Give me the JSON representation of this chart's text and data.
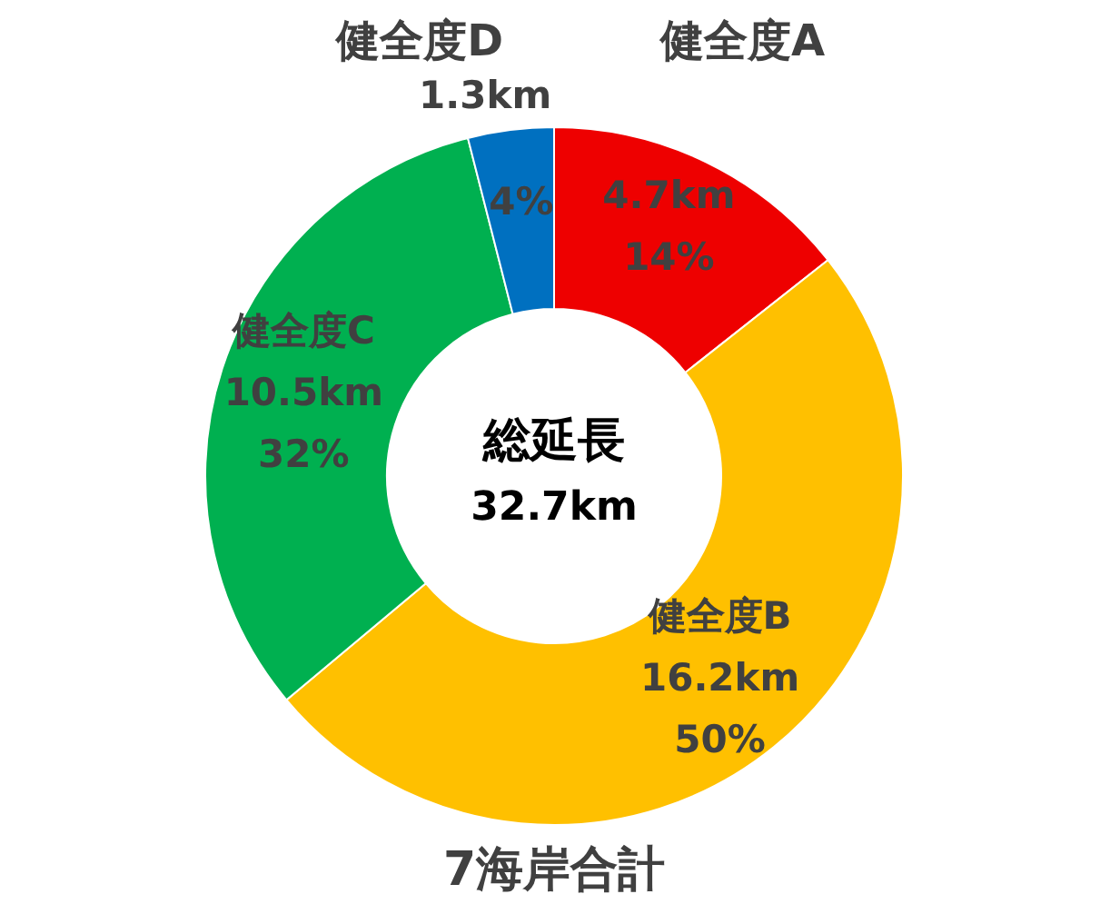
{
  "chart_data": {
    "type": "donut",
    "subtitle": "7海岸合計",
    "categories": [
      "健全度A",
      "健全度B",
      "健全度C",
      "健全度D"
    ],
    "values": [
      4.7,
      16.2,
      10.5,
      1.3
    ],
    "value_labels": [
      "4.7km 14%",
      "16.2km 50%",
      "10.5km 32%",
      "1.3km 4%"
    ],
    "colors": [
      "#ee0000",
      "#ffc000",
      "#00b050",
      "#0070c0"
    ],
    "annotations": [
      "総延長",
      "32.7km"
    ]
  }
}
